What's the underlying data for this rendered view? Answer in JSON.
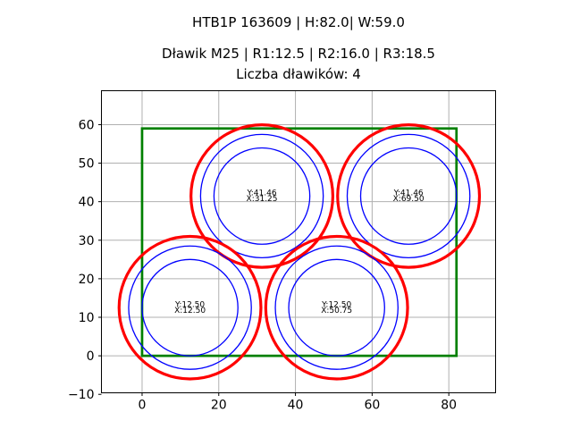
{
  "colors": {
    "enclosure": "#008000",
    "outer_circle": "#ff0000",
    "inner_circle": "#0000ff",
    "grid": "#b0b0b0",
    "spine": "#000000",
    "text": "#000000",
    "background": "#ffffff"
  },
  "chart_data": {
    "type": "scatter",
    "title": "HTB1P 163609 | H:82.0| W:59.0",
    "subtitle": "Dławik M25 | R1:12.5 | R2:16.0 | R3:18.5",
    "annotation": "Liczba dławików: 4",
    "xlim": [
      -10.6,
      92.2
    ],
    "ylim": [
      -9.6,
      68.8
    ],
    "xticks": [
      0,
      20,
      40,
      60,
      80
    ],
    "xtick_labels": [
      "0",
      "20",
      "40",
      "60",
      "80"
    ],
    "yticks": [
      -10,
      0,
      10,
      20,
      30,
      40,
      50,
      60
    ],
    "ytick_labels": [
      "−10",
      "0",
      "10",
      "20",
      "30",
      "40",
      "50",
      "60"
    ],
    "grid": true,
    "legend": "none",
    "enclosure": {
      "x": 0,
      "y": 0,
      "width": 82,
      "height": 59
    },
    "gland_radii": {
      "R1": 12.5,
      "R2": 16.0,
      "R3": 18.5
    },
    "glands": [
      {
        "x": 31.25,
        "y": 41.46,
        "label": [
          "Y:41.46",
          "X:31.25"
        ]
      },
      {
        "x": 69.5,
        "y": 41.46,
        "label": [
          "Y:41.46",
          "X:69.50"
        ]
      },
      {
        "x": 12.5,
        "y": 12.5,
        "label": [
          "Y:12.50",
          "X:12.50"
        ]
      },
      {
        "x": 50.75,
        "y": 12.5,
        "label": [
          "Y:12.50",
          "X:50.75"
        ]
      }
    ]
  }
}
